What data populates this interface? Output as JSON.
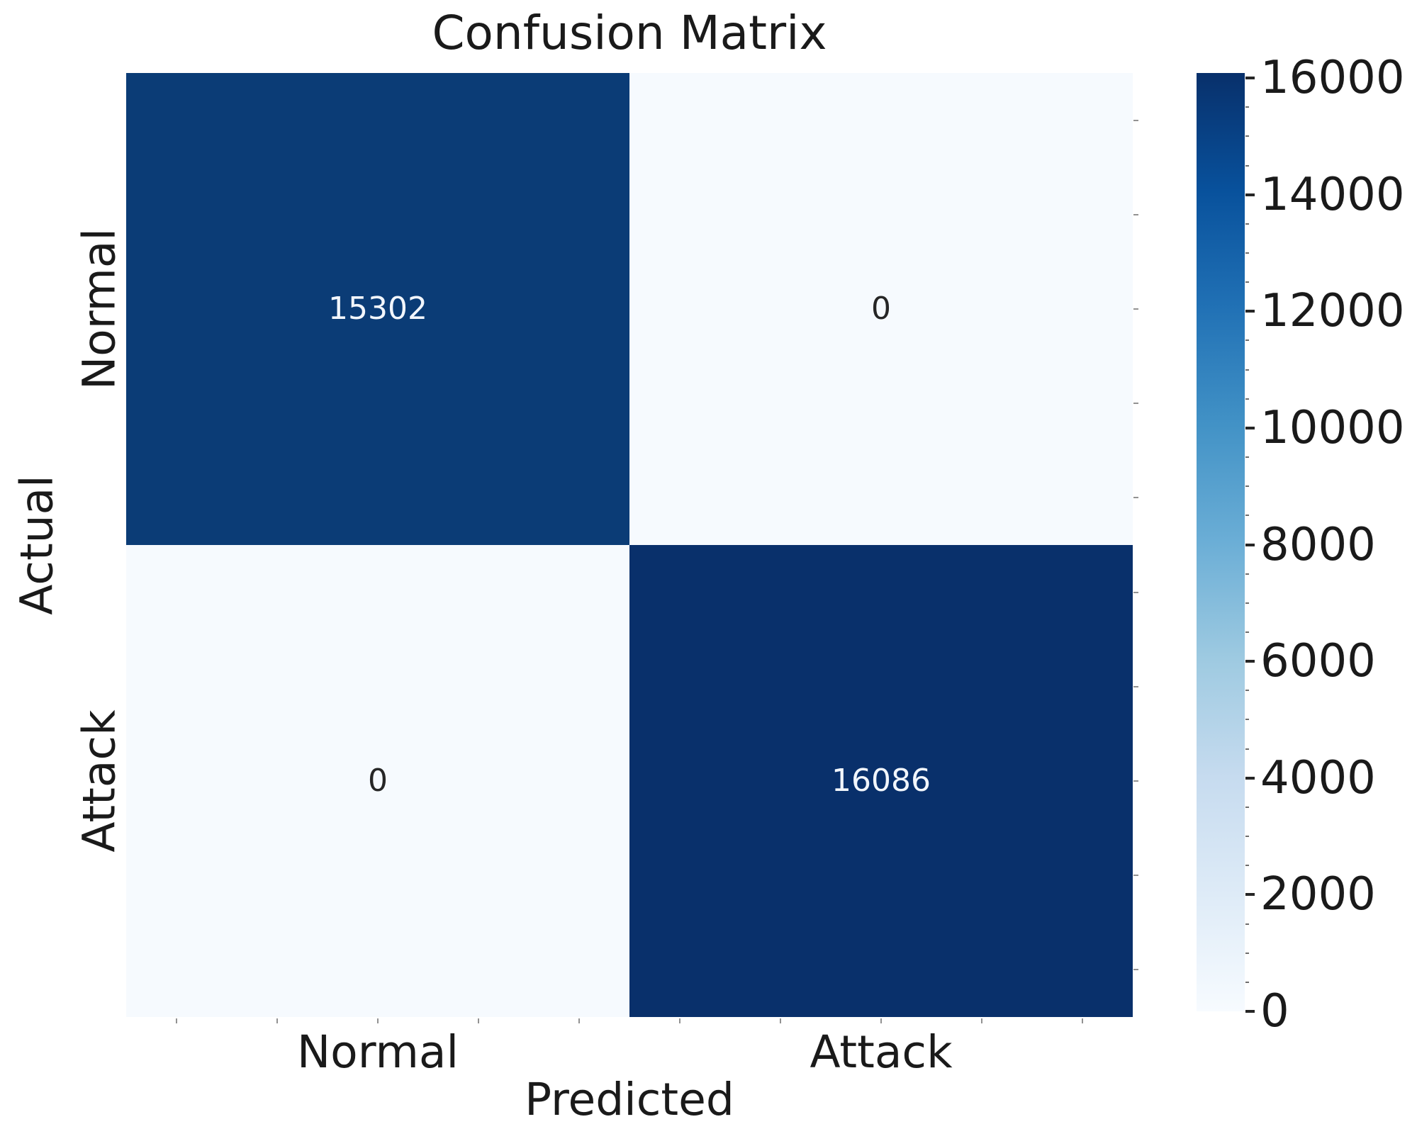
{
  "chart_data": {
    "type": "heatmap",
    "title": "Confusion Matrix",
    "xlabel": "Predicted",
    "ylabel": "Actual",
    "x_categories": [
      "Normal",
      "Attack"
    ],
    "y_categories": [
      "Normal",
      "Attack"
    ],
    "matrix": [
      [
        15302,
        0
      ],
      [
        0,
        16086
      ]
    ],
    "cell_colors": [
      [
        "#0b3c76",
        "#f6fafe"
      ],
      [
        "#f6fafe",
        "#09306b"
      ]
    ],
    "annot_colors": [
      [
        "#f2f6fc",
        "#262626"
      ],
      [
        "#262626",
        "#f2f6fc"
      ]
    ],
    "colormap": "Blues",
    "grid": false,
    "legend_position": "right-colorbar",
    "colorbar": {
      "vmin": 0,
      "vmax": 16086,
      "tick_values": [
        0,
        2000,
        4000,
        6000,
        8000,
        10000,
        12000,
        14000,
        16000
      ],
      "tick_labels": [
        "0",
        "2000",
        "4000",
        "6000",
        "8000",
        "10000",
        "12000",
        "14000",
        "16000"
      ],
      "minor_tick_step": 500,
      "gradient_stops_low_to_high": [
        "#f7fbff",
        "#deebf7",
        "#c6dbef",
        "#9ecae1",
        "#6baed6",
        "#4292c6",
        "#2171b5",
        "#08519c",
        "#08306b"
      ]
    }
  }
}
